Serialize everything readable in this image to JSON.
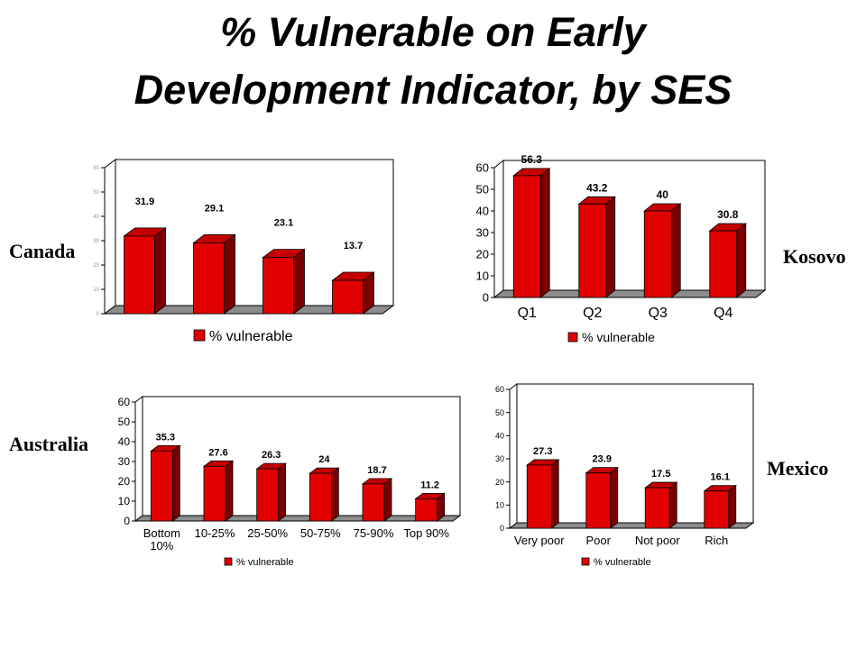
{
  "title": {
    "line1": "% Vulnerable on Early",
    "line2": "Development Indicator, by SES"
  },
  "colors": {
    "bar_front": "#e00000",
    "bar_side": "#7a0000",
    "bar_top": "#c40000",
    "floor": "#8c8c8c"
  },
  "chart_data": [
    {
      "type": "bar",
      "country": "Canada",
      "categories": [
        "",
        "",
        "",
        ""
      ],
      "values": [
        31.9,
        29.1,
        23.1,
        13.7
      ],
      "value_labels": [
        "31.9",
        "29.1",
        "23.1",
        "13.7"
      ],
      "ylim": [
        0,
        60
      ],
      "yticks": [
        "0",
        "10",
        "20",
        "30",
        "40",
        "50",
        "60"
      ],
      "series": [
        {
          "name": "% vulnerable",
          "values": [
            31.9,
            29.1,
            23.1,
            13.7
          ]
        }
      ],
      "legend": "bottom-center"
    },
    {
      "type": "bar",
      "country": "Kosovo",
      "categories": [
        "Q1",
        "Q2",
        "Q3",
        "Q4"
      ],
      "values": [
        56.3,
        43.2,
        40,
        30.8
      ],
      "value_labels": [
        "56.3",
        "43.2",
        "40",
        "30.8"
      ],
      "ylim": [
        0,
        60
      ],
      "yticks": [
        "0",
        "10",
        "20",
        "30",
        "40",
        "50",
        "60"
      ],
      "series": [
        {
          "name": "% vulnerable",
          "values": [
            56.3,
            43.2,
            40,
            30.8
          ]
        }
      ],
      "legend": "bottom-center"
    },
    {
      "type": "bar",
      "country": "Australia",
      "categories": [
        "Bottom\n10%",
        "10-25%",
        "25-50%",
        "50-75%",
        "75-90%",
        "Top 90%"
      ],
      "values": [
        35.3,
        27.6,
        26.3,
        24,
        18.7,
        11.2
      ],
      "value_labels": [
        "35.3",
        "27.6",
        "26.3",
        "24",
        "18.7",
        "11.2"
      ],
      "ylim": [
        0,
        60
      ],
      "yticks": [
        "0",
        "10",
        "20",
        "30",
        "40",
        "50",
        "60"
      ],
      "series": [
        {
          "name": "% vulnerable",
          "values": [
            35.3,
            27.6,
            26.3,
            24,
            18.7,
            11.2
          ]
        }
      ],
      "legend": "bottom-center"
    },
    {
      "type": "bar",
      "country": "Mexico",
      "categories": [
        "Very poor",
        "Poor",
        "Not poor",
        "Rich"
      ],
      "values": [
        27.3,
        23.9,
        17.5,
        16.1
      ],
      "value_labels": [
        "27.3",
        "23.9",
        "17.5",
        "16.1"
      ],
      "ylim": [
        0,
        60
      ],
      "yticks": [
        "0",
        "10",
        "20",
        "30",
        "40",
        "50",
        "60"
      ],
      "series": [
        {
          "name": "% vulnerable",
          "values": [
            27.3,
            23.9,
            17.5,
            16.1
          ]
        }
      ],
      "legend": "bottom-center"
    }
  ]
}
